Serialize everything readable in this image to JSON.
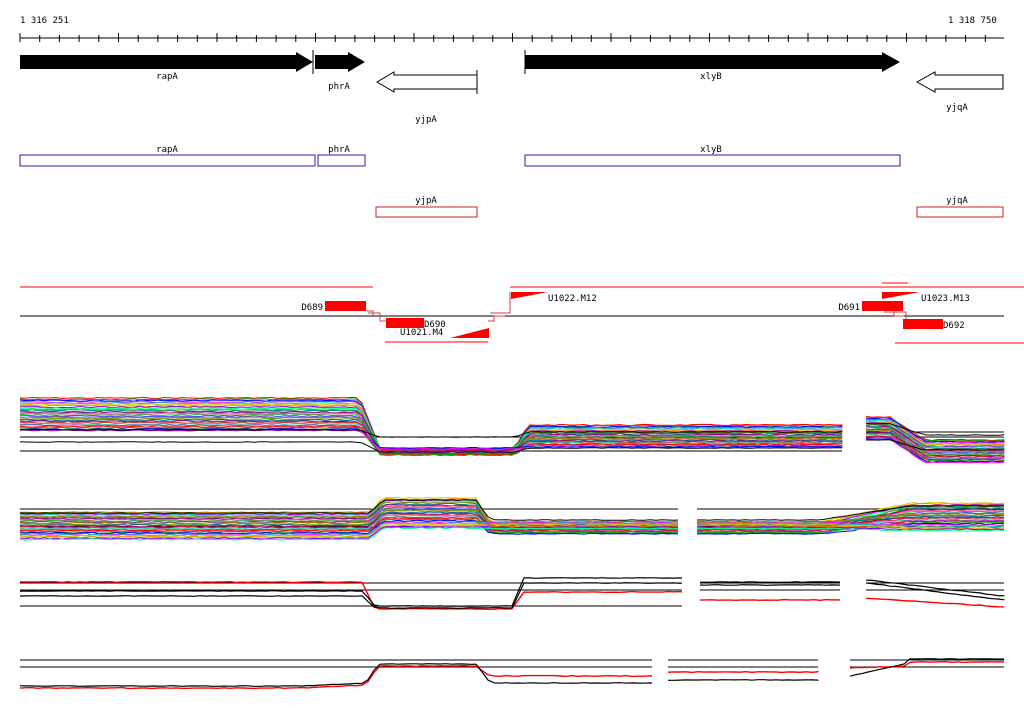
{
  "ruler": {
    "start_label": "1 316 251",
    "end_label": "1 318 750"
  },
  "genes": [
    {
      "id": "rapA",
      "label": "rapA"
    },
    {
      "id": "phrA",
      "label": "phrA"
    },
    {
      "id": "yjpA",
      "label": "yjpA"
    },
    {
      "id": "xlyB",
      "label": "xlyB"
    },
    {
      "id": "yjqA",
      "label": "yjqA"
    }
  ],
  "features": {
    "D689": "D689",
    "D690": "D690",
    "U1021_M4": "U1021.M4",
    "U1022_M12": "U1022.M12",
    "D691": "D691",
    "D692": "D692",
    "U1023_M13": "U1023.M13"
  },
  "colors": {
    "sense_gene": "#000000",
    "box_forward": "#2222aa",
    "box_reverse": "#cc2222",
    "feature_red": "#ff0000",
    "track_line": "#000000"
  }
}
